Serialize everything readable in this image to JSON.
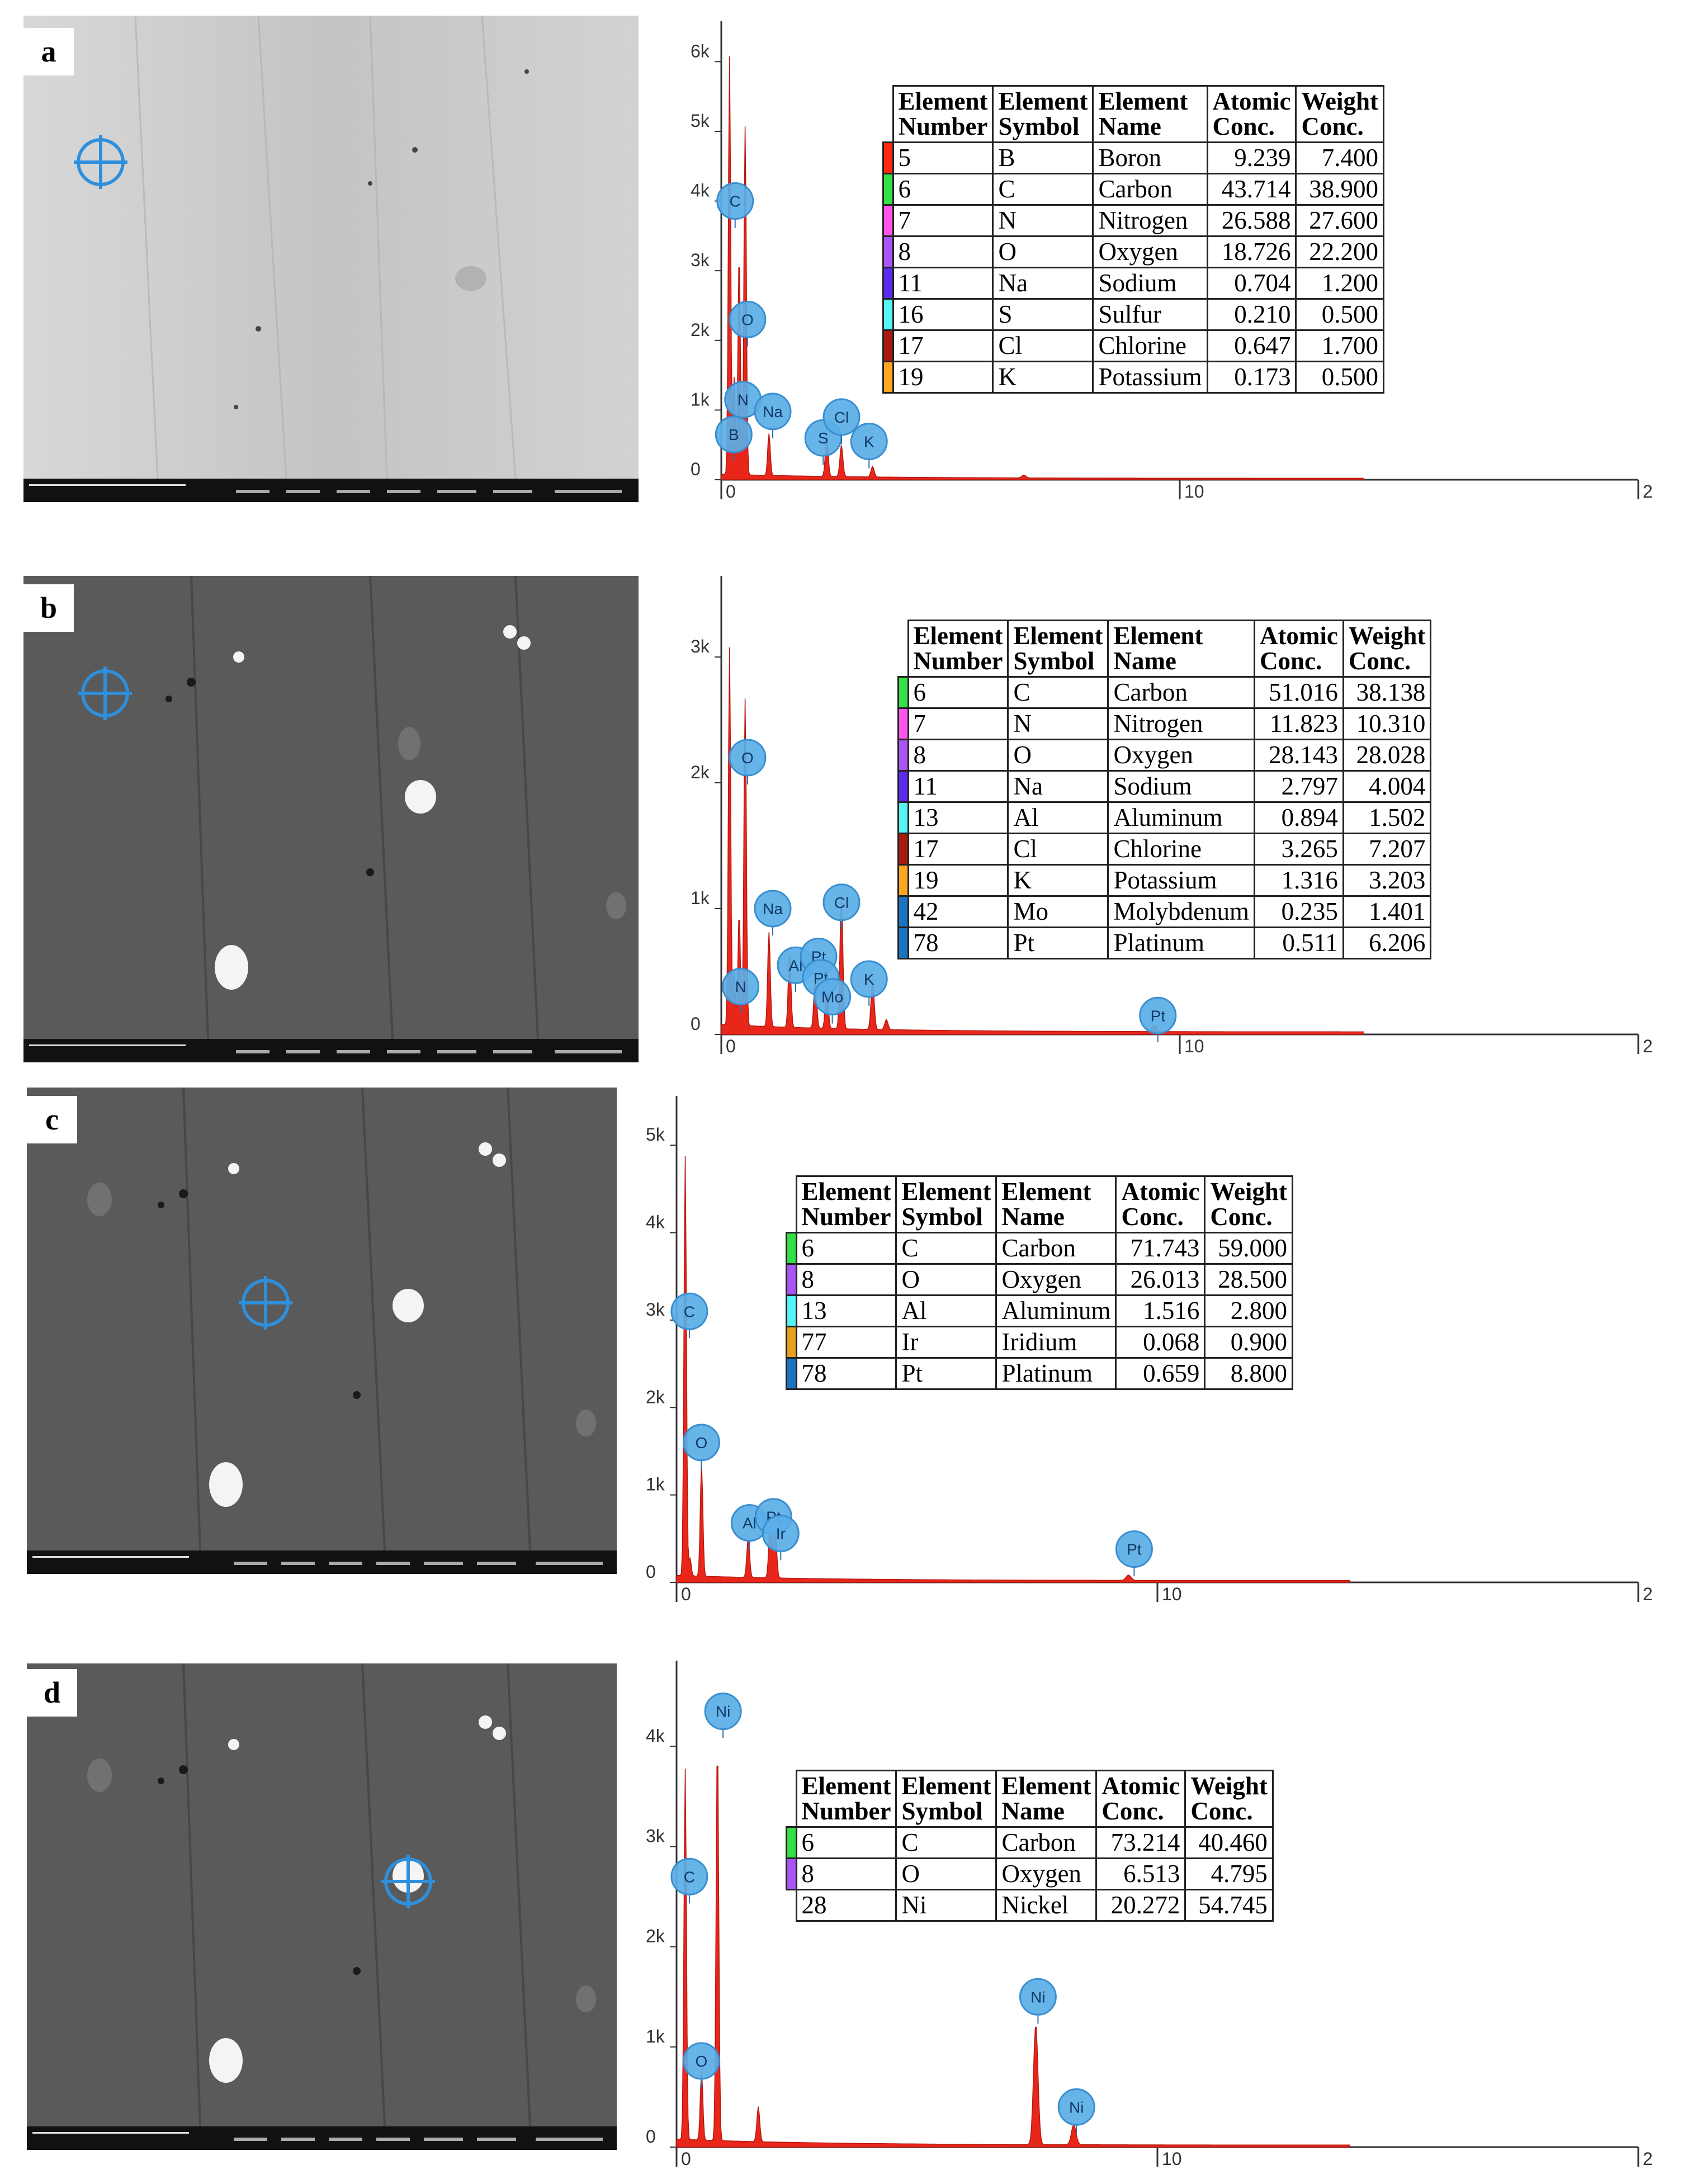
{
  "panels": [
    {
      "label": "a",
      "spectrum": {
        "y_ticks": [
          "6k",
          "5k",
          "4k",
          "3k",
          "2k",
          "1k",
          "0"
        ],
        "x_ticks": [
          "0",
          "10",
          "2"
        ],
        "markers": [
          {
            "label": "C",
            "x": 0.18,
            "y": 4000
          },
          {
            "label": "O",
            "x": 0.45,
            "y": 2300
          },
          {
            "label": "N",
            "x": 0.35,
            "y": 1150
          },
          {
            "label": "B",
            "x": 0.15,
            "y": 650
          },
          {
            "label": "Na",
            "x": 1.0,
            "y": 980
          },
          {
            "label": "S",
            "x": 2.1,
            "y": 600
          },
          {
            "label": "Cl",
            "x": 2.5,
            "y": 900
          },
          {
            "label": "K",
            "x": 3.1,
            "y": 550
          }
        ]
      },
      "table": {
        "headers": [
          "Element Number",
          "Element Symbol",
          "Element Name",
          "Atomic Conc.",
          "Weight Conc."
        ],
        "rows": [
          {
            "color": "#ff2a10",
            "num": "5",
            "sym": "B",
            "name": "Boron",
            "atomic": "9.239",
            "weight": "7.400"
          },
          {
            "color": "#33e046",
            "num": "6",
            "sym": "C",
            "name": "Carbon",
            "atomic": "43.714",
            "weight": "38.900"
          },
          {
            "color": "#ff55e8",
            "num": "7",
            "sym": "N",
            "name": "Nitrogen",
            "atomic": "26.588",
            "weight": "27.600"
          },
          {
            "color": "#a955f5",
            "num": "8",
            "sym": "O",
            "name": "Oxygen",
            "atomic": "18.726",
            "weight": "22.200"
          },
          {
            "color": "#5b2cf0",
            "num": "11",
            "sym": "Na",
            "name": "Sodium",
            "atomic": "0.704",
            "weight": "1.200"
          },
          {
            "color": "#55f5f5",
            "num": "16",
            "sym": "S",
            "name": "Sulfur",
            "atomic": "0.210",
            "weight": "0.500"
          },
          {
            "color": "#a81a0e",
            "num": "17",
            "sym": "Cl",
            "name": "Chlorine",
            "atomic": "0.647",
            "weight": "1.700"
          },
          {
            "color": "#ffa522",
            "num": "19",
            "sym": "K",
            "name": "Potassium",
            "atomic": "0.173",
            "weight": "0.500"
          }
        ]
      }
    },
    {
      "label": "b",
      "spectrum": {
        "y_ticks": [
          "3k",
          "2k",
          "1k",
          "0"
        ],
        "x_ticks": [
          "0",
          "10",
          "2"
        ],
        "markers": [
          {
            "label": "O",
            "x": 0.45,
            "y": 2200
          },
          {
            "label": "Na",
            "x": 1.0,
            "y": 1000
          },
          {
            "label": "Cl",
            "x": 2.5,
            "y": 1050
          },
          {
            "label": "N",
            "x": 0.3,
            "y": 380
          },
          {
            "label": "Al",
            "x": 1.5,
            "y": 550
          },
          {
            "label": "Pt",
            "x": 2.0,
            "y": 620
          },
          {
            "label": "Pt",
            "x": 2.05,
            "y": 450
          },
          {
            "label": "Mo",
            "x": 2.3,
            "y": 300
          },
          {
            "label": "K",
            "x": 3.1,
            "y": 440
          },
          {
            "label": "Pt",
            "x": 9.4,
            "y": 150
          }
        ]
      },
      "table": {
        "headers": [
          "Element Number",
          "Element Symbol",
          "Element Name",
          "Atomic Conc.",
          "Weight Conc."
        ],
        "rows": [
          {
            "color": "#33e046",
            "num": "6",
            "sym": "C",
            "name": "Carbon",
            "atomic": "51.016",
            "weight": "38.138"
          },
          {
            "color": "#ff55e8",
            "num": "7",
            "sym": "N",
            "name": "Nitrogen",
            "atomic": "11.823",
            "weight": "10.310"
          },
          {
            "color": "#a955f5",
            "num": "8",
            "sym": "O",
            "name": "Oxygen",
            "atomic": "28.143",
            "weight": "28.028"
          },
          {
            "color": "#5b2cf0",
            "num": "11",
            "sym": "Na",
            "name": "Sodium",
            "atomic": "2.797",
            "weight": "4.004"
          },
          {
            "color": "#55f5f5",
            "num": "13",
            "sym": "Al",
            "name": "Aluminum",
            "atomic": "0.894",
            "weight": "1.502"
          },
          {
            "color": "#a81a0e",
            "num": "17",
            "sym": "Cl",
            "name": "Chlorine",
            "atomic": "3.265",
            "weight": "7.207"
          },
          {
            "color": "#ffa522",
            "num": "19",
            "sym": "K",
            "name": "Potassium",
            "atomic": "1.316",
            "weight": "3.203"
          },
          {
            "color": "#1c74c0",
            "num": "42",
            "sym": "Mo",
            "name": "Molybdenum",
            "atomic": "0.235",
            "weight": "1.401"
          },
          {
            "color": "#1c74c0",
            "num": "78",
            "sym": "Pt",
            "name": "Platinum",
            "atomic": "0.511",
            "weight": "6.206"
          }
        ]
      }
    },
    {
      "label": "c",
      "spectrum": {
        "y_ticks": [
          "5k",
          "4k",
          "3k",
          "2k",
          "1k",
          "0"
        ],
        "x_ticks": [
          "0",
          "10",
          "2"
        ],
        "markers": [
          {
            "label": "C",
            "x": 0.15,
            "y": 3100
          },
          {
            "label": "O",
            "x": 0.4,
            "y": 1600
          },
          {
            "label": "Al",
            "x": 1.4,
            "y": 680
          },
          {
            "label": "Pt",
            "x": 1.9,
            "y": 750
          },
          {
            "label": "Ir",
            "x": 2.05,
            "y": 560
          },
          {
            "label": "Pt",
            "x": 9.4,
            "y": 380
          }
        ]
      },
      "table": {
        "headers": [
          "Element Number",
          "Element Symbol",
          "Element Name",
          "Atomic Conc.",
          "Weight Conc."
        ],
        "rows": [
          {
            "color": "#33e046",
            "num": "6",
            "sym": "C",
            "name": "Carbon",
            "atomic": "71.743",
            "weight": "59.000"
          },
          {
            "color": "#a955f5",
            "num": "8",
            "sym": "O",
            "name": "Oxygen",
            "atomic": "26.013",
            "weight": "28.500"
          },
          {
            "color": "#55f5f5",
            "num": "13",
            "sym": "Al",
            "name": "Aluminum",
            "atomic": "1.516",
            "weight": "2.800"
          },
          {
            "color": "#e8a020",
            "num": "77",
            "sym": "Ir",
            "name": "Iridium",
            "atomic": "0.068",
            "weight": "0.900"
          },
          {
            "color": "#1c74c0",
            "num": "78",
            "sym": "Pt",
            "name": "Platinum",
            "atomic": "0.659",
            "weight": "8.800"
          }
        ]
      }
    },
    {
      "label": "d",
      "spectrum": {
        "y_ticks": [
          "4k",
          "3k",
          "2k",
          "1k",
          "0"
        ],
        "x_ticks": [
          "0",
          "10",
          "2"
        ],
        "markers": [
          {
            "label": "Ni",
            "x": 0.85,
            "y": 4350
          },
          {
            "label": "C",
            "x": 0.15,
            "y": 2700
          },
          {
            "label": "O",
            "x": 0.4,
            "y": 860
          },
          {
            "label": "Ni",
            "x": 7.4,
            "y": 1500
          },
          {
            "label": "Ni",
            "x": 8.2,
            "y": 400
          }
        ]
      },
      "table": {
        "headers": [
          "Element Number",
          "Element Symbol",
          "Element Name",
          "Atomic Conc.",
          "Weight Conc."
        ],
        "rows": [
          {
            "color": "#33e046",
            "num": "6",
            "sym": "C",
            "name": "Carbon",
            "atomic": "73.214",
            "weight": "40.460"
          },
          {
            "color": "#a955f5",
            "num": "8",
            "sym": "O",
            "name": "Oxygen",
            "atomic": "6.513",
            "weight": "4.795"
          },
          {
            "color": "",
            "num": "28",
            "sym": "Ni",
            "name": "Nickel",
            "atomic": "20.272",
            "weight": "54.745"
          }
        ]
      }
    }
  ]
}
